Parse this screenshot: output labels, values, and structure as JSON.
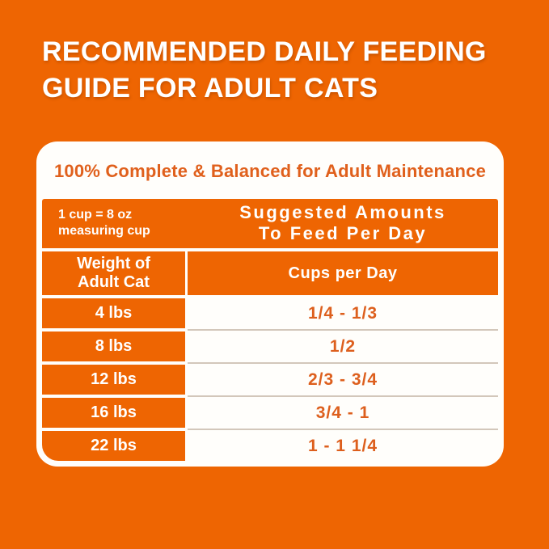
{
  "page": {
    "heading_line1": "RECOMMENDED DAILY FEEDING",
    "heading_line2": "GUIDE FOR ADULT CATS"
  },
  "card": {
    "title": "100% Complete & Balanced for Adult Maintenance",
    "header_band": {
      "note_line1": "1 cup = 8 oz",
      "note_line2": "measuring cup",
      "suggested_line1": "Suggested Amounts",
      "suggested_line2": "To Feed Per Day"
    },
    "column_headers": {
      "weight_line1": "Weight of",
      "weight_line2": "Adult Cat",
      "cups": "Cups per Day"
    },
    "rows": [
      {
        "weight": "4 lbs",
        "cups": "1/4 - 1/3"
      },
      {
        "weight": "8 lbs",
        "cups": "1/2"
      },
      {
        "weight": "12 lbs",
        "cups": "2/3 - 3/4"
      },
      {
        "weight": "16 lbs",
        "cups": "3/4 - 1"
      },
      {
        "weight": "22 lbs",
        "cups": "1 - 1 1/4"
      }
    ]
  },
  "colors": {
    "background_orange": "#EE6502",
    "table_orange": "#EE6502",
    "text_orange": "#DD5F1D",
    "card_white": "#FFFEFB",
    "separator_tan": "#D3C7BA"
  }
}
